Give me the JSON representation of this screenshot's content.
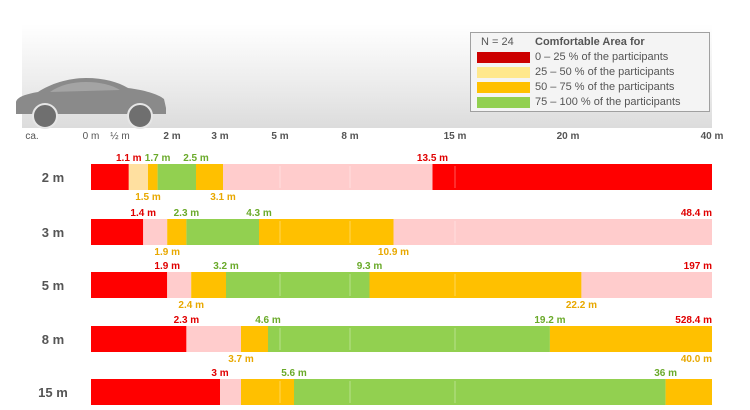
{
  "chart_data": {
    "type": "bar",
    "orientation": "horizontal-stacked",
    "legend": {
      "sample": "N = 24",
      "title": "Comfortable Area for",
      "entries": [
        {
          "label": "0 – 25 % of the participants",
          "color": "#cc0000"
        },
        {
          "label": "25 – 50 % of the participants",
          "color": "#ffe88c"
        },
        {
          "label": "50 – 75 % of the participants",
          "color": "#ffc000"
        },
        {
          "label": "75 – 100 % of the participants",
          "color": "#92d050"
        }
      ],
      "placement": "top-right"
    },
    "x_axis": {
      "ticks": [
        {
          "label": "ca.",
          "value": null
        },
        {
          "label": "0 m",
          "value": 0
        },
        {
          "label": "½ m",
          "value": 0.5
        },
        {
          "label": "2 m",
          "value": 2
        },
        {
          "label": "3 m",
          "value": 3
        },
        {
          "label": "5 m",
          "value": 5
        },
        {
          "label": "8 m",
          "value": 8
        },
        {
          "label": "15 m",
          "value": 15
        },
        {
          "label": "20 m",
          "value": 20
        },
        {
          "label": "40 m",
          "value": 40
        }
      ]
    },
    "rows": [
      {
        "label": "2 m",
        "segments": [
          {
            "from": 0,
            "to": 1.1,
            "color": "#ff0000"
          },
          {
            "from": 1.1,
            "to": 1.5,
            "color": "#ffe0a0"
          },
          {
            "from": 1.5,
            "to": 1.7,
            "color": "#ffc000"
          },
          {
            "from": 1.7,
            "to": 2.5,
            "color": "#92d050"
          },
          {
            "from": 2.5,
            "to": 3.1,
            "color": "#ffc000"
          },
          {
            "from": 3.1,
            "to": 13.5,
            "color": "#ffcccc"
          },
          {
            "from": 13.5,
            "to": 40,
            "color": "#ff0000"
          }
        ],
        "labels": [
          {
            "text": "1.1 m",
            "value": 1.1,
            "pos": "top",
            "color": "#e00000"
          },
          {
            "text": "1.7 m",
            "value": 1.7,
            "pos": "top",
            "color": "#6aaa2a"
          },
          {
            "text": "2.5 m",
            "value": 2.5,
            "pos": "top",
            "color": "#6aaa2a"
          },
          {
            "text": "13.5 m",
            "value": 13.5,
            "pos": "top",
            "color": "#e00000"
          },
          {
            "text": "1.5 m",
            "value": 1.5,
            "pos": "bottom",
            "color": "#e8a800"
          },
          {
            "text": "3.1 m",
            "value": 3.1,
            "pos": "bottom",
            "color": "#e8a800"
          }
        ]
      },
      {
        "label": "3 m",
        "segments": [
          {
            "from": 0,
            "to": 1.4,
            "color": "#ff0000"
          },
          {
            "from": 1.4,
            "to": 1.9,
            "color": "#ffcccc"
          },
          {
            "from": 1.9,
            "to": 2.3,
            "color": "#ffc000"
          },
          {
            "from": 2.3,
            "to": 4.3,
            "color": "#92d050"
          },
          {
            "from": 4.3,
            "to": 10.9,
            "color": "#ffc000"
          },
          {
            "from": 10.9,
            "to": 48.4,
            "color": "#ffcccc"
          }
        ],
        "labels": [
          {
            "text": "1.4 m",
            "value": 1.4,
            "pos": "top",
            "color": "#e00000"
          },
          {
            "text": "2.3 m",
            "value": 2.3,
            "pos": "top",
            "color": "#6aaa2a"
          },
          {
            "text": "4.3 m",
            "value": 4.3,
            "pos": "top",
            "color": "#6aaa2a"
          },
          {
            "text": "48.4 m",
            "value": 48.4,
            "pos": "top",
            "color": "#e00000"
          },
          {
            "text": "1.9 m",
            "value": 1.9,
            "pos": "bottom",
            "color": "#e8a800"
          },
          {
            "text": "10.9 m",
            "value": 10.9,
            "pos": "bottom",
            "color": "#e8a800"
          }
        ]
      },
      {
        "label": "5 m",
        "segments": [
          {
            "from": 0,
            "to": 1.9,
            "color": "#ff0000"
          },
          {
            "from": 1.9,
            "to": 2.4,
            "color": "#ffcccc"
          },
          {
            "from": 2.4,
            "to": 3.2,
            "color": "#ffc000"
          },
          {
            "from": 3.2,
            "to": 9.3,
            "color": "#92d050"
          },
          {
            "from": 9.3,
            "to": 22.2,
            "color": "#ffc000"
          },
          {
            "from": 22.2,
            "to": 197,
            "color": "#ffcccc"
          }
        ],
        "labels": [
          {
            "text": "1.9 m",
            "value": 1.9,
            "pos": "top",
            "color": "#e00000"
          },
          {
            "text": "3.2 m",
            "value": 3.2,
            "pos": "top",
            "color": "#6aaa2a"
          },
          {
            "text": "9.3 m",
            "value": 9.3,
            "pos": "top",
            "color": "#6aaa2a"
          },
          {
            "text": "197 m",
            "value": 197,
            "pos": "top",
            "color": "#e00000"
          },
          {
            "text": "2.4 m",
            "value": 2.4,
            "pos": "bottom",
            "color": "#e8a800"
          },
          {
            "text": "22.2 m",
            "value": 22.2,
            "pos": "bottom",
            "color": "#e8a800"
          }
        ]
      },
      {
        "label": "8 m",
        "segments": [
          {
            "from": 0,
            "to": 2.3,
            "color": "#ff0000"
          },
          {
            "from": 2.3,
            "to": 3.7,
            "color": "#ffcccc"
          },
          {
            "from": 3.7,
            "to": 4.6,
            "color": "#ffc000"
          },
          {
            "from": 4.6,
            "to": 19.2,
            "color": "#92d050"
          },
          {
            "from": 19.2,
            "to": 40.0,
            "color": "#ffc000"
          },
          {
            "from": 40.0,
            "to": 528.4,
            "color": "#ffcccc"
          }
        ],
        "labels": [
          {
            "text": "2.3 m",
            "value": 2.3,
            "pos": "top",
            "color": "#e00000"
          },
          {
            "text": "4.6 m",
            "value": 4.6,
            "pos": "top",
            "color": "#6aaa2a"
          },
          {
            "text": "19.2 m",
            "value": 19.2,
            "pos": "top",
            "color": "#6aaa2a"
          },
          {
            "text": "528.4 m",
            "value": 528.4,
            "pos": "top",
            "color": "#e00000"
          },
          {
            "text": "3.7 m",
            "value": 3.7,
            "pos": "bottom",
            "color": "#e8a800"
          },
          {
            "text": "40.0 m",
            "value": 40.0,
            "pos": "bottom",
            "color": "#e8a800"
          }
        ]
      },
      {
        "label": "15 m",
        "segments": [
          {
            "from": 0,
            "to": 3,
            "color": "#ff0000"
          },
          {
            "from": 3,
            "to": 3.7,
            "color": "#ffcccc"
          },
          {
            "from": 3.7,
            "to": 5.6,
            "color": "#ffc000"
          },
          {
            "from": 5.6,
            "to": 36,
            "color": "#92d050"
          },
          {
            "from": 36,
            "to": 40,
            "color": "#ffc000"
          }
        ],
        "labels": [
          {
            "text": "3 m",
            "value": 3,
            "pos": "top",
            "color": "#e00000"
          },
          {
            "text": "5.6 m",
            "value": 5.6,
            "pos": "top",
            "color": "#6aaa2a"
          },
          {
            "text": "36 m",
            "value": 36,
            "pos": "top",
            "color": "#6aaa2a"
          }
        ]
      }
    ]
  }
}
